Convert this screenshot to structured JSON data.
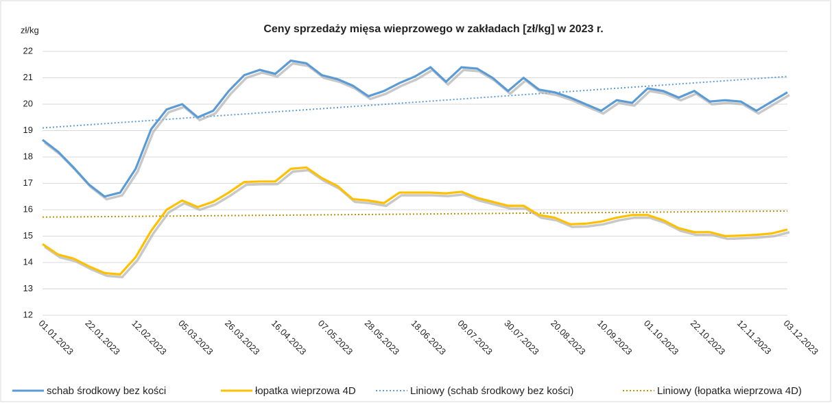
{
  "chart_data": {
    "type": "line",
    "title": "Ceny sprzedaży mięsa wieprzowego w zakładach [zł/kg] w 2023 r.",
    "y_label": "zł/kg",
    "categories": [
      "01.01.2023",
      null,
      null,
      "22.01.2023",
      null,
      null,
      "12.02.2023",
      null,
      null,
      "05.03.2023",
      null,
      null,
      "26.03.2023",
      null,
      null,
      "16.04.2023",
      null,
      null,
      "07.05.2023",
      null,
      null,
      "28.05.2023",
      null,
      null,
      "18.06.2023",
      null,
      null,
      "09.07.2023",
      null,
      null,
      "30.07.2023",
      null,
      null,
      "20.08.2023",
      null,
      null,
      "10.09.2023",
      null,
      null,
      "01.10.2023",
      null,
      null,
      "22.10.2023",
      null,
      null,
      "12.11.2023",
      null,
      null,
      "03.12.2023"
    ],
    "series": [
      {
        "name": "schab środkowy bez kości",
        "color": "#5b9bd5",
        "values": [
          18.65,
          18.2,
          17.6,
          16.95,
          16.5,
          16.65,
          17.55,
          19.05,
          19.8,
          20.0,
          19.5,
          19.75,
          20.5,
          21.1,
          21.3,
          21.15,
          21.65,
          21.55,
          21.1,
          20.95,
          20.7,
          20.3,
          20.5,
          20.8,
          21.05,
          21.4,
          20.85,
          21.4,
          21.35,
          21.0,
          20.5,
          21.0,
          20.55,
          20.45,
          20.25,
          20.0,
          19.75,
          20.15,
          20.05,
          20.6,
          20.5,
          20.25,
          20.5,
          20.1,
          20.15,
          20.1,
          19.75,
          20.1,
          20.45
        ]
      },
      {
        "name": "łopatka wieprzowa 4D",
        "color": "#ffc000",
        "values": [
          14.7,
          14.3,
          14.15,
          13.85,
          13.6,
          13.55,
          14.2,
          15.2,
          16.0,
          16.35,
          16.1,
          16.3,
          16.65,
          17.05,
          17.07,
          17.07,
          17.55,
          17.6,
          17.2,
          16.9,
          16.4,
          16.35,
          16.25,
          16.65,
          16.65,
          16.65,
          16.62,
          16.68,
          16.45,
          16.3,
          16.15,
          16.15,
          15.8,
          15.7,
          15.45,
          15.47,
          15.55,
          15.7,
          15.8,
          15.8,
          15.6,
          15.3,
          15.15,
          15.15,
          15.0,
          15.02,
          15.05,
          15.1,
          15.25
        ]
      }
    ],
    "trendlines": [
      {
        "name": "Liniowy (schab środkowy bez kości)",
        "color": "#5b9bd5",
        "start": 19.1,
        "end": 21.05
      },
      {
        "name": "Liniowy (łopatka wieprzowa 4D)",
        "color": "#bf9000",
        "start": 15.72,
        "end": 15.95
      }
    ],
    "ylim": [
      12,
      22
    ],
    "yticks": [
      12,
      13,
      14,
      15,
      16,
      17,
      18,
      19,
      20,
      21,
      22
    ],
    "grid": true
  }
}
